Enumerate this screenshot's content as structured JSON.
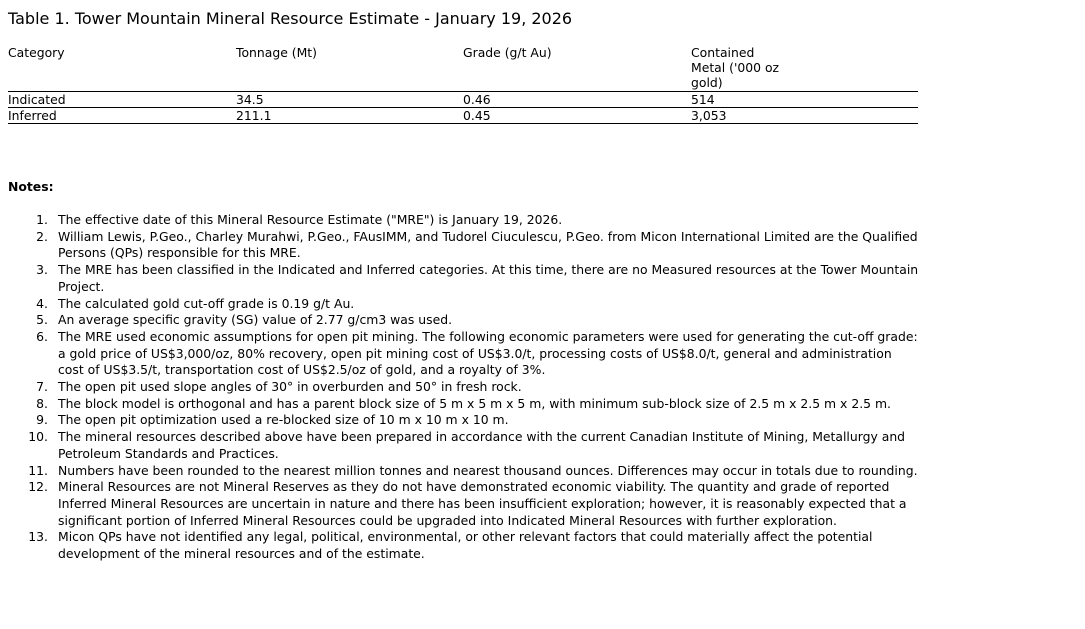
{
  "title": "Table 1. Tower Mountain Mineral Resource Estimate - January 19, 2026",
  "table": {
    "headers": [
      "Category",
      "Tonnage (Mt)",
      "Grade (g/t Au)",
      "Contained Metal ('000 oz gold)"
    ],
    "rows": [
      [
        "Indicated",
        "34.5",
        "0.46",
        "514"
      ],
      [
        "Inferred",
        "211.1",
        "0.45",
        "3,053"
      ]
    ]
  },
  "notes_heading": "Notes:",
  "notes": [
    "The effective date of this Mineral Resource Estimate (\"MRE\") is January 19, 2026.",
    "William Lewis, P.Geo., Charley Murahwi, P.Geo., FAusIMM, and Tudorel Ciuculescu, P.Geo. from Micon International Limited are the Qualified Persons (QPs) responsible for this MRE.",
    "The MRE has been classified in the Indicated and Inferred categories. At this time, there are no Measured resources at the Tower Mountain Project.",
    "The calculated gold cut-off grade is 0.19 g/t Au.",
    "An average specific gravity (SG) value of 2.77 g/cm3 was used.",
    "The MRE used economic assumptions for open pit mining. The following economic parameters were used for generating the cut-off grade: a gold price of US$3,000/oz, 80% recovery, open pit mining cost of US$3.0/t, processing costs of US$8.0/t, general and administration cost of US$3.5/t, transportation cost of US$2.5/oz of gold, and a royalty of 3%.",
    "The open pit used slope angles of 30° in overburden and 50° in fresh rock.",
    "The block model is orthogonal and has a parent block size of 5 m x 5 m x 5 m, with minimum sub-block size of 2.5 m x 2.5 m x 2.5 m.",
    "The open pit optimization used a re-blocked size of 10 m x 10 m x 10 m.",
    "The mineral resources described above have been prepared in accordance with the current Canadian Institute of Mining, Metallurgy and Petroleum Standards and Practices.",
    "Numbers have been rounded to the nearest million tonnes and nearest thousand ounces. Differences may occur in totals due to rounding.",
    "Mineral Resources are not Mineral Reserves as they do not have demonstrated economic viability. The quantity and grade of reported Inferred Mineral Resources are uncertain in nature and there has been insufficient exploration; however, it is reasonably expected that a significant portion of Inferred Mineral Resources could be upgraded into Indicated Mineral Resources with further exploration.",
    "Micon QPs have not identified any legal, political, environmental, or other relevant factors that could materially affect the potential development of the mineral resources and of the estimate."
  ]
}
